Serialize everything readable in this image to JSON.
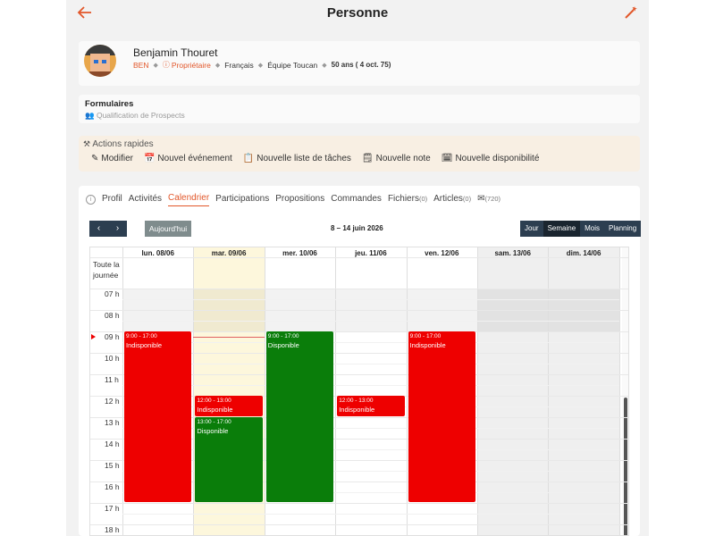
{
  "header": {
    "title": "Personne"
  },
  "person": {
    "name": "Benjamin Thouret",
    "initials": "BEN",
    "role": "Propriétaire",
    "language": "Français",
    "team": "Équipe Toucan",
    "age": "50 ans ( 4 oct. 75)"
  },
  "forms": {
    "title": "Formulaires",
    "item": "Qualification de Prospects"
  },
  "quick_actions": {
    "title": "Actions rapides",
    "items": [
      "Modifier",
      "Nouvel événement",
      "Nouvelle liste de tâches",
      "Nouvelle note",
      "Nouvelle disponibilité"
    ]
  },
  "tabs": [
    {
      "label": "Profil"
    },
    {
      "label": "Activités"
    },
    {
      "label": "Calendrier",
      "active": true
    },
    {
      "label": "Participations"
    },
    {
      "label": "Propositions"
    },
    {
      "label": "Commandes"
    },
    {
      "label": "Fichiers",
      "count": "(0)"
    },
    {
      "label": "Articles",
      "count": "(0)"
    },
    {
      "label": "",
      "count": "(720)"
    }
  ],
  "calendar": {
    "today_label": "Aujourd'hui",
    "range": "8 – 14 juin 2026",
    "views": [
      "Jour",
      "Semaine",
      "Mois",
      "Planning"
    ],
    "active_view": "Semaine",
    "days": [
      "lun. 08/06",
      "mar. 09/06",
      "mer. 10/06",
      "jeu. 11/06",
      "ven. 12/06",
      "sam. 13/06",
      "dim. 14/06"
    ],
    "all_day_label": "Toute la journée",
    "hours": [
      "07 h",
      "08 h",
      "09 h",
      "10 h",
      "11 h",
      "12 h",
      "13 h",
      "14 h",
      "15 h",
      "16 h",
      "17 h",
      "18 h"
    ],
    "events": [
      {
        "day": 0,
        "time": "9:00 - 17:00",
        "label": "Indisponible",
        "color": "#ee0000"
      },
      {
        "day": 1,
        "time": "12:00 - 13:00",
        "label": "Indisponible",
        "color": "#ee0000"
      },
      {
        "day": 1,
        "time": "13:00 - 17:00",
        "label": "Disponible",
        "color": "#0a7d0a"
      },
      {
        "day": 2,
        "time": "9:00 - 17:00",
        "label": "Disponible",
        "color": "#0a7d0a"
      },
      {
        "day": 3,
        "time": "12:00 - 13:00",
        "label": "Indisponible",
        "color": "#ee0000"
      },
      {
        "day": 4,
        "time": "9:00 - 17:00",
        "label": "Indisponible",
        "color": "#ee0000"
      }
    ]
  },
  "colors": {
    "accent": "#e2572a",
    "today_column": "#fdf7dc",
    "weekend": "#efefef",
    "nav_button": "#2c3e50"
  }
}
